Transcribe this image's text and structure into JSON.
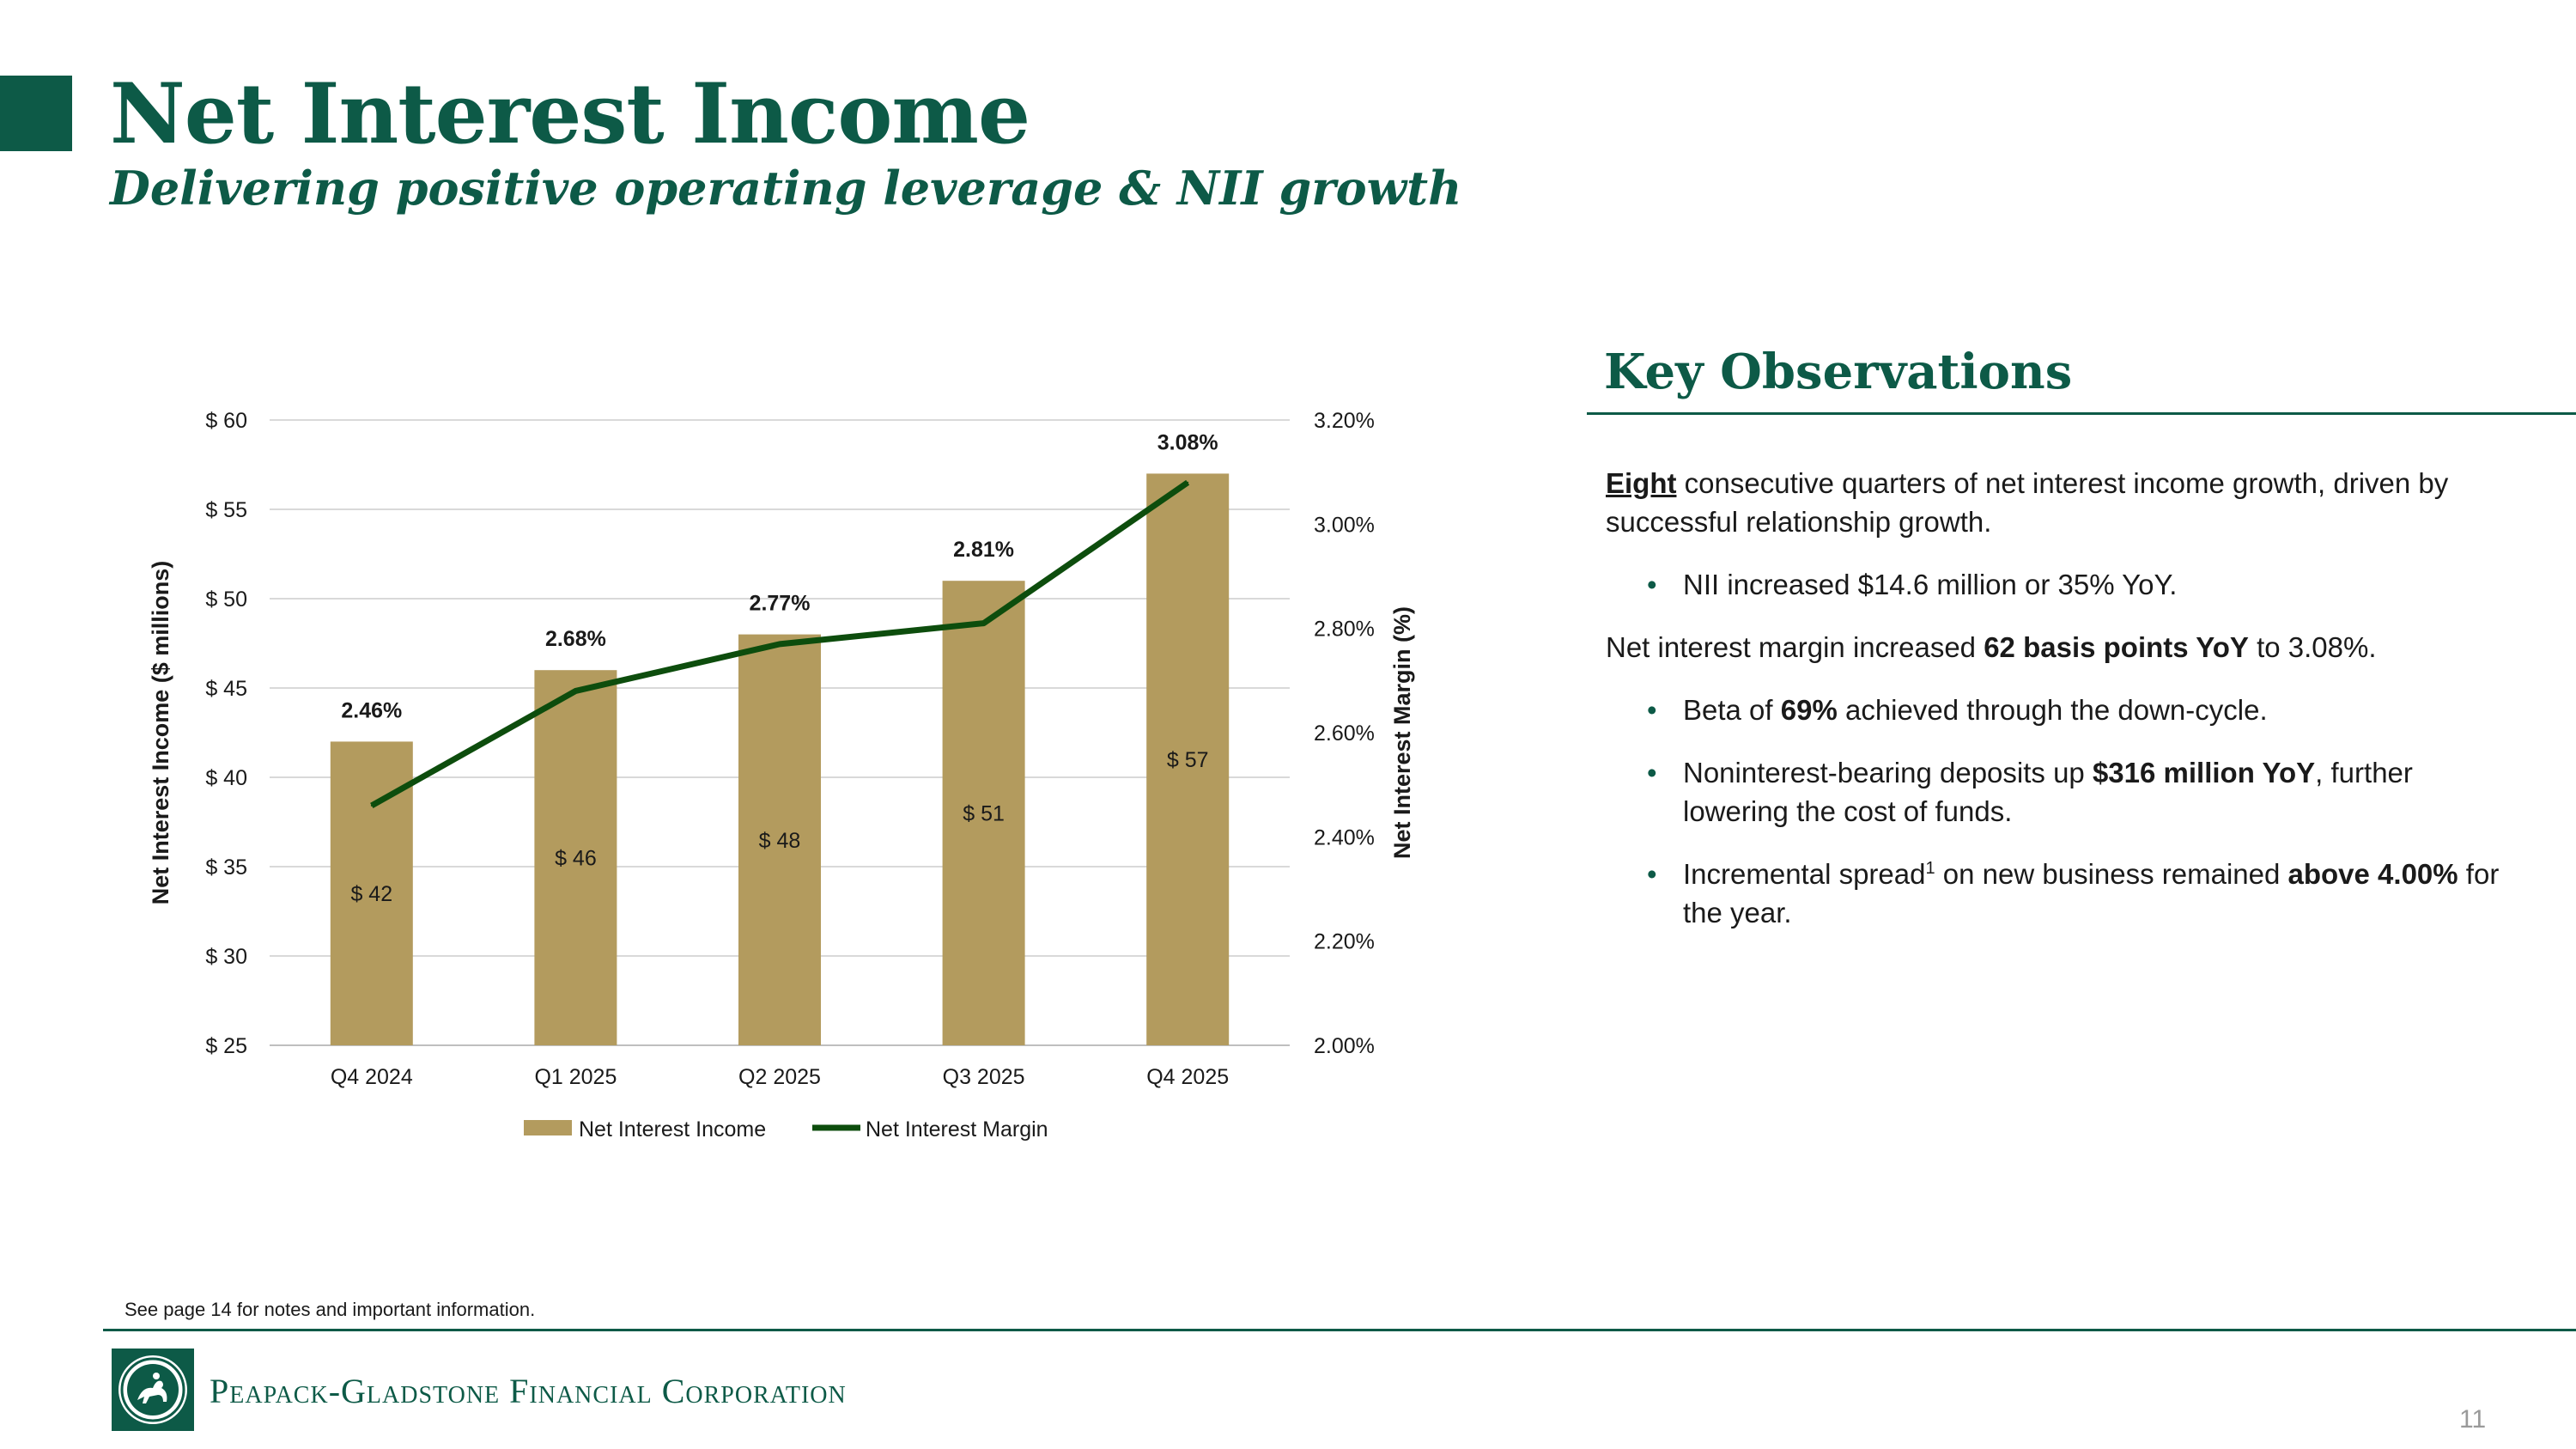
{
  "header": {
    "title": "Net Interest Income",
    "subtitle": "Delivering positive operating leverage & NII growth"
  },
  "colors": {
    "brand_green": "#0d5a47",
    "bar_color": "#b39b5e",
    "line_color": "#0d4d0d"
  },
  "chart_data": {
    "type": "bar",
    "categories": [
      "Q4 2024",
      "Q1 2025",
      "Q2 2025",
      "Q3 2025",
      "Q4 2025"
    ],
    "series": [
      {
        "name": "Net Interest Income",
        "type": "bar",
        "axis": "left",
        "values": [
          42,
          46,
          48,
          51,
          57
        ],
        "labels": [
          "$ 42",
          "$ 46",
          "$ 48",
          "$ 51",
          "$ 57"
        ]
      },
      {
        "name": "Net Interest Margin",
        "type": "line",
        "axis": "right",
        "values": [
          2.46,
          2.68,
          2.77,
          2.81,
          3.08
        ],
        "labels": [
          "2.46%",
          "2.68%",
          "2.77%",
          "2.81%",
          "3.08%"
        ]
      }
    ],
    "ylabel": "Net Interest Income ($ millions)",
    "y2label": "Net Interest Margin (%)",
    "ylim": [
      25,
      60
    ],
    "y2lim": [
      2.0,
      3.2
    ],
    "yticks": [
      "$ 25",
      "$ 30",
      "$ 35",
      "$ 40",
      "$ 45",
      "$ 50",
      "$ 55",
      "$ 60"
    ],
    "y2ticks": [
      "2.00%",
      "2.20%",
      "2.40%",
      "2.60%",
      "2.80%",
      "3.00%",
      "3.20%"
    ],
    "grid": true,
    "legend": "bottom"
  },
  "observations": {
    "title": "Key Observations",
    "p1_lead": "Eight",
    "p1_rest": " consecutive quarters of net interest income growth, driven by successful relationship growth.",
    "b1": "NII increased $14.6 million or 35% YoY.",
    "p2_a": "Net interest margin increased ",
    "p2_b": "62 basis points YoY",
    "p2_c": " to 3.08%.",
    "b2_a": "Beta of ",
    "b2_b": "69%",
    "b2_c": " achieved through the down-cycle.",
    "b3_a": "Noninterest-bearing deposits up ",
    "b3_b": "$316 million YoY",
    "b3_c": ", further lowering the cost of funds.",
    "b4_a": "Incremental spread",
    "b4_sup": "1",
    "b4_b": " on new business remained ",
    "b4_c": "above 4.00%",
    "b4_d": " for the year.",
    "bullet": "•"
  },
  "footer": {
    "note": "See page 14 for notes and important information.",
    "company": "Peapack-Gladstone Financial Corporation",
    "page_number": "11"
  }
}
